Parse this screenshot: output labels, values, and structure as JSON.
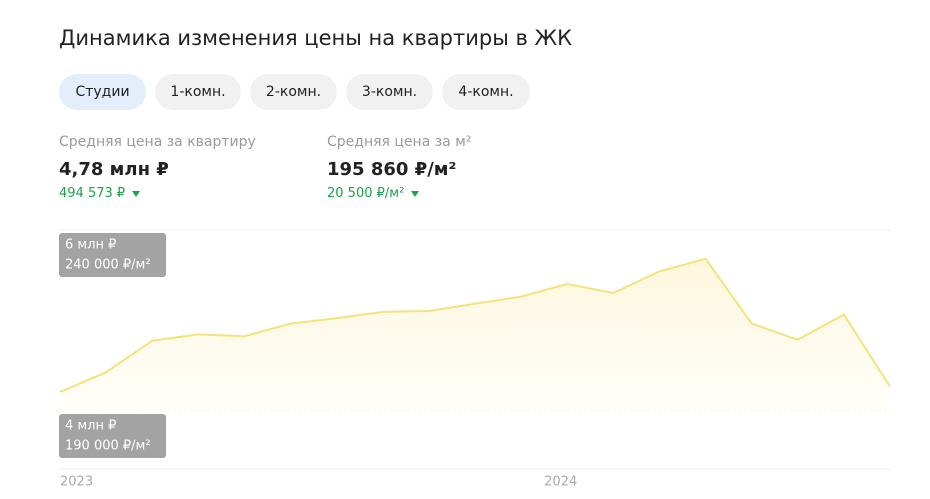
{
  "header": {
    "title": "Динамика изменения цены на квартиры в ЖК"
  },
  "tabs": [
    {
      "label": "Студии",
      "active": true
    },
    {
      "label": "1-комн.",
      "active": false
    },
    {
      "label": "2-комн.",
      "active": false
    },
    {
      "label": "3-комн.",
      "active": false
    },
    {
      "label": "4-комн.",
      "active": false
    }
  ],
  "stats": [
    {
      "label": "Средняя цена за квартиру",
      "value": "4,78 млн ₽",
      "change": "494 573 ₽"
    },
    {
      "label": "Средняя цена за м²",
      "value": "195 860 ₽/м²",
      "change": "20 500 ₽/м²"
    }
  ],
  "chart_data": {
    "type": "line",
    "color": "#f5e27a",
    "x": [
      0,
      1,
      2,
      3,
      4,
      5,
      6,
      7,
      8,
      9,
      10,
      11,
      12,
      13,
      14,
      15,
      16,
      17,
      18
    ],
    "values": [
      4.2,
      4.42,
      4.77,
      4.84,
      4.82,
      4.96,
      5.02,
      5.09,
      5.1,
      5.18,
      5.26,
      5.4,
      5.3,
      5.54,
      5.68,
      4.96,
      4.78,
      5.06,
      4.26
    ],
    "xlim": [
      0,
      18
    ],
    "xticks": [
      {
        "value": 0,
        "label": "2023"
      },
      {
        "value": 10.5,
        "label": "2024"
      }
    ],
    "ylim": [
      4,
      6
    ],
    "yticks": [
      {
        "value": 4,
        "label": "4 млн ₽"
      },
      {
        "value": 6,
        "label": "6 млн ₽"
      }
    ],
    "y2lim": [
      190000,
      240000
    ],
    "y2ticks": [
      {
        "value": 190000,
        "label": "190 000 ₽/м²"
      },
      {
        "value": 240000,
        "label": "240 000 ₽/м²"
      }
    ]
  }
}
